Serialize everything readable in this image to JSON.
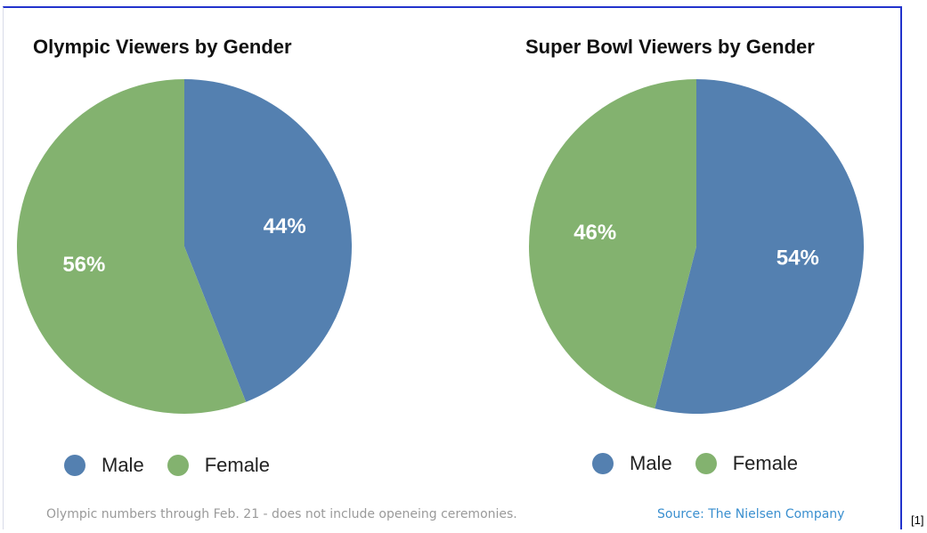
{
  "chart_data": [
    {
      "type": "pie",
      "title": "Olympic Viewers by Gender",
      "categories": [
        "Male",
        "Female"
      ],
      "values": [
        44,
        56
      ],
      "labels": [
        "44%",
        "56%"
      ],
      "colors": [
        "#5480b0",
        "#83b26f"
      ],
      "legend": "bottom"
    },
    {
      "type": "pie",
      "title": "Super Bowl Viewers by Gender",
      "categories": [
        "Male",
        "Female"
      ],
      "values": [
        54,
        46
      ],
      "labels": [
        "54%",
        "46%"
      ],
      "colors": [
        "#5480b0",
        "#83b26f"
      ],
      "legend": "bottom"
    }
  ],
  "footnote": "Olympic numbers through Feb. 21 - does not include openeing ceremonies.",
  "source": "Source: The Nielsen Company",
  "reference": "[1]"
}
